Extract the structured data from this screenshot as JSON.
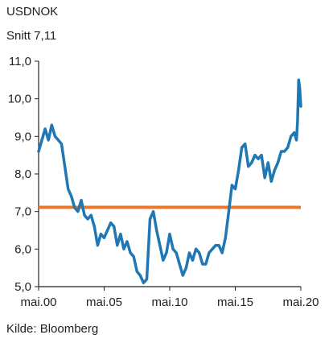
{
  "chart_data": {
    "type": "line",
    "title": "USDNOK",
    "subtitle": "Snitt 7,11",
    "source": "Kilde: Bloomberg",
    "x_ticks": [
      "mai.00",
      "mai.05",
      "mai.10",
      "mai.15",
      "mai.20"
    ],
    "y_ticks": [
      "5,0",
      "6,0",
      "7,0",
      "8,0",
      "9,0",
      "10,0",
      "11,0"
    ],
    "xlim": [
      "2000-05",
      "2020-05"
    ],
    "ylim": [
      5.0,
      11.0
    ],
    "average": {
      "label": "Snitt 7,11",
      "value": 7.11,
      "color": "#e8772e"
    },
    "series": [
      {
        "color": "#1f77b4",
        "points": [
          [
            "2000-05",
            8.6
          ],
          [
            "2000-08",
            8.9
          ],
          [
            "2000-11",
            9.2
          ],
          [
            "2001-02",
            8.9
          ],
          [
            "2001-05",
            9.3
          ],
          [
            "2001-08",
            9.0
          ],
          [
            "2001-11",
            8.9
          ],
          [
            "2002-02",
            8.8
          ],
          [
            "2002-05",
            8.2
          ],
          [
            "2002-08",
            7.6
          ],
          [
            "2002-11",
            7.4
          ],
          [
            "2003-02",
            7.1
          ],
          [
            "2003-05",
            7.0
          ],
          [
            "2003-08",
            7.3
          ],
          [
            "2003-11",
            6.9
          ],
          [
            "2004-02",
            6.8
          ],
          [
            "2004-05",
            6.9
          ],
          [
            "2004-08",
            6.6
          ],
          [
            "2004-11",
            6.1
          ],
          [
            "2005-02",
            6.4
          ],
          [
            "2005-05",
            6.3
          ],
          [
            "2005-08",
            6.5
          ],
          [
            "2005-11",
            6.7
          ],
          [
            "2006-02",
            6.6
          ],
          [
            "2006-05",
            6.1
          ],
          [
            "2006-08",
            6.4
          ],
          [
            "2006-11",
            6.0
          ],
          [
            "2007-02",
            6.2
          ],
          [
            "2007-05",
            5.9
          ],
          [
            "2007-08",
            5.8
          ],
          [
            "2007-11",
            5.4
          ],
          [
            "2008-02",
            5.3
          ],
          [
            "2008-05",
            5.1
          ],
          [
            "2008-08",
            5.2
          ],
          [
            "2008-11",
            6.8
          ],
          [
            "2009-02",
            7.0
          ],
          [
            "2009-05",
            6.5
          ],
          [
            "2009-08",
            6.1
          ],
          [
            "2009-11",
            5.7
          ],
          [
            "2010-02",
            5.9
          ],
          [
            "2010-05",
            6.4
          ],
          [
            "2010-08",
            6.0
          ],
          [
            "2010-11",
            5.9
          ],
          [
            "2011-02",
            5.6
          ],
          [
            "2011-05",
            5.3
          ],
          [
            "2011-08",
            5.5
          ],
          [
            "2011-11",
            5.9
          ],
          [
            "2012-02",
            5.7
          ],
          [
            "2012-05",
            6.0
          ],
          [
            "2012-08",
            5.9
          ],
          [
            "2012-11",
            5.6
          ],
          [
            "2013-02",
            5.6
          ],
          [
            "2013-05",
            5.9
          ],
          [
            "2013-08",
            6.0
          ],
          [
            "2013-11",
            6.1
          ],
          [
            "2014-02",
            6.1
          ],
          [
            "2014-05",
            5.9
          ],
          [
            "2014-08",
            6.3
          ],
          [
            "2014-11",
            7.0
          ],
          [
            "2015-02",
            7.7
          ],
          [
            "2015-05",
            7.6
          ],
          [
            "2015-08",
            8.1
          ],
          [
            "2015-11",
            8.7
          ],
          [
            "2016-02",
            8.8
          ],
          [
            "2016-05",
            8.2
          ],
          [
            "2016-08",
            8.3
          ],
          [
            "2016-11",
            8.5
          ],
          [
            "2017-02",
            8.4
          ],
          [
            "2017-05",
            8.5
          ],
          [
            "2017-08",
            7.9
          ],
          [
            "2017-11",
            8.3
          ],
          [
            "2018-02",
            7.8
          ],
          [
            "2018-05",
            8.1
          ],
          [
            "2018-08",
            8.3
          ],
          [
            "2018-11",
            8.6
          ],
          [
            "2019-02",
            8.6
          ],
          [
            "2019-05",
            8.7
          ],
          [
            "2019-08",
            9.0
          ],
          [
            "2019-11",
            9.1
          ],
          [
            "2020-01",
            8.9
          ],
          [
            "2020-02",
            9.4
          ],
          [
            "2020-03",
            10.5
          ],
          [
            "2020-04",
            10.3
          ],
          [
            "2020-05",
            9.8
          ]
        ]
      }
    ]
  }
}
